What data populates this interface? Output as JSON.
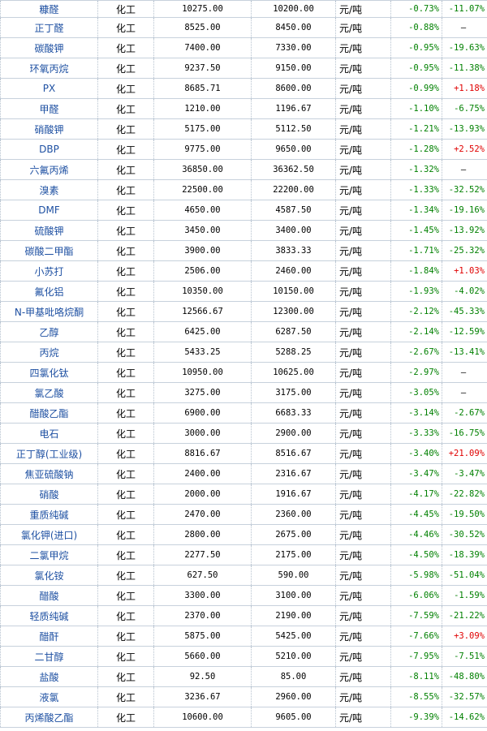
{
  "rows": [
    {
      "name": "糠醛",
      "sector": "化工",
      "price_1": "10275.00",
      "price_2": "10200.00",
      "unit": "元/吨",
      "change_1": "-0.73%",
      "change_2": "-11.07%"
    },
    {
      "name": "正丁醛",
      "sector": "化工",
      "price_1": "8525.00",
      "price_2": "8450.00",
      "unit": "元/吨",
      "change_1": "-0.88%",
      "change_2": "—"
    },
    {
      "name": "碳酸钾",
      "sector": "化工",
      "price_1": "7400.00",
      "price_2": "7330.00",
      "unit": "元/吨",
      "change_1": "-0.95%",
      "change_2": "-19.63%"
    },
    {
      "name": "环氧丙烷",
      "sector": "化工",
      "price_1": "9237.50",
      "price_2": "9150.00",
      "unit": "元/吨",
      "change_1": "-0.95%",
      "change_2": "-11.38%"
    },
    {
      "name": "PX",
      "sector": "化工",
      "price_1": "8685.71",
      "price_2": "8600.00",
      "unit": "元/吨",
      "change_1": "-0.99%",
      "change_2": "+1.18%"
    },
    {
      "name": "甲醛",
      "sector": "化工",
      "price_1": "1210.00",
      "price_2": "1196.67",
      "unit": "元/吨",
      "change_1": "-1.10%",
      "change_2": "-6.75%"
    },
    {
      "name": "硝酸钾",
      "sector": "化工",
      "price_1": "5175.00",
      "price_2": "5112.50",
      "unit": "元/吨",
      "change_1": "-1.21%",
      "change_2": "-13.93%"
    },
    {
      "name": "DBP",
      "sector": "化工",
      "price_1": "9775.00",
      "price_2": "9650.00",
      "unit": "元/吨",
      "change_1": "-1.28%",
      "change_2": "+2.52%"
    },
    {
      "name": "六氟丙烯",
      "sector": "化工",
      "price_1": "36850.00",
      "price_2": "36362.50",
      "unit": "元/吨",
      "change_1": "-1.32%",
      "change_2": "—"
    },
    {
      "name": "溴素",
      "sector": "化工",
      "price_1": "22500.00",
      "price_2": "22200.00",
      "unit": "元/吨",
      "change_1": "-1.33%",
      "change_2": "-32.52%"
    },
    {
      "name": "DMF",
      "sector": "化工",
      "price_1": "4650.00",
      "price_2": "4587.50",
      "unit": "元/吨",
      "change_1": "-1.34%",
      "change_2": "-19.16%"
    },
    {
      "name": "硫酸钾",
      "sector": "化工",
      "price_1": "3450.00",
      "price_2": "3400.00",
      "unit": "元/吨",
      "change_1": "-1.45%",
      "change_2": "-13.92%"
    },
    {
      "name": "碳酸二甲酯",
      "sector": "化工",
      "price_1": "3900.00",
      "price_2": "3833.33",
      "unit": "元/吨",
      "change_1": "-1.71%",
      "change_2": "-25.32%"
    },
    {
      "name": "小苏打",
      "sector": "化工",
      "price_1": "2506.00",
      "price_2": "2460.00",
      "unit": "元/吨",
      "change_1": "-1.84%",
      "change_2": "+1.03%"
    },
    {
      "name": "氟化铝",
      "sector": "化工",
      "price_1": "10350.00",
      "price_2": "10150.00",
      "unit": "元/吨",
      "change_1": "-1.93%",
      "change_2": "-4.02%"
    },
    {
      "name": "N-甲基吡咯烷酮",
      "sector": "化工",
      "price_1": "12566.67",
      "price_2": "12300.00",
      "unit": "元/吨",
      "change_1": "-2.12%",
      "change_2": "-45.33%"
    },
    {
      "name": "乙醇",
      "sector": "化工",
      "price_1": "6425.00",
      "price_2": "6287.50",
      "unit": "元/吨",
      "change_1": "-2.14%",
      "change_2": "-12.59%"
    },
    {
      "name": "丙烷",
      "sector": "化工",
      "price_1": "5433.25",
      "price_2": "5288.25",
      "unit": "元/吨",
      "change_1": "-2.67%",
      "change_2": "-13.41%"
    },
    {
      "name": "四氯化钛",
      "sector": "化工",
      "price_1": "10950.00",
      "price_2": "10625.00",
      "unit": "元/吨",
      "change_1": "-2.97%",
      "change_2": "—"
    },
    {
      "name": "氯乙酸",
      "sector": "化工",
      "price_1": "3275.00",
      "price_2": "3175.00",
      "unit": "元/吨",
      "change_1": "-3.05%",
      "change_2": "—"
    },
    {
      "name": "醋酸乙酯",
      "sector": "化工",
      "price_1": "6900.00",
      "price_2": "6683.33",
      "unit": "元/吨",
      "change_1": "-3.14%",
      "change_2": "-2.67%"
    },
    {
      "name": "电石",
      "sector": "化工",
      "price_1": "3000.00",
      "price_2": "2900.00",
      "unit": "元/吨",
      "change_1": "-3.33%",
      "change_2": "-16.75%"
    },
    {
      "name": "正丁醇(工业级)",
      "sector": "化工",
      "price_1": "8816.67",
      "price_2": "8516.67",
      "unit": "元/吨",
      "change_1": "-3.40%",
      "change_2": "+21.09%"
    },
    {
      "name": "焦亚硫酸钠",
      "sector": "化工",
      "price_1": "2400.00",
      "price_2": "2316.67",
      "unit": "元/吨",
      "change_1": "-3.47%",
      "change_2": "-3.47%"
    },
    {
      "name": "硝酸",
      "sector": "化工",
      "price_1": "2000.00",
      "price_2": "1916.67",
      "unit": "元/吨",
      "change_1": "-4.17%",
      "change_2": "-22.82%"
    },
    {
      "name": "重质纯碱",
      "sector": "化工",
      "price_1": "2470.00",
      "price_2": "2360.00",
      "unit": "元/吨",
      "change_1": "-4.45%",
      "change_2": "-19.50%"
    },
    {
      "name": "氯化钾(进口)",
      "sector": "化工",
      "price_1": "2800.00",
      "price_2": "2675.00",
      "unit": "元/吨",
      "change_1": "-4.46%",
      "change_2": "-30.52%"
    },
    {
      "name": "二氯甲烷",
      "sector": "化工",
      "price_1": "2277.50",
      "price_2": "2175.00",
      "unit": "元/吨",
      "change_1": "-4.50%",
      "change_2": "-18.39%"
    },
    {
      "name": "氯化铵",
      "sector": "化工",
      "price_1": "627.50",
      "price_2": "590.00",
      "unit": "元/吨",
      "change_1": "-5.98%",
      "change_2": "-51.04%"
    },
    {
      "name": "醋酸",
      "sector": "化工",
      "price_1": "3300.00",
      "price_2": "3100.00",
      "unit": "元/吨",
      "change_1": "-6.06%",
      "change_2": "-1.59%"
    },
    {
      "name": "轻质纯碱",
      "sector": "化工",
      "price_1": "2370.00",
      "price_2": "2190.00",
      "unit": "元/吨",
      "change_1": "-7.59%",
      "change_2": "-21.22%"
    },
    {
      "name": "醋酐",
      "sector": "化工",
      "price_1": "5875.00",
      "price_2": "5425.00",
      "unit": "元/吨",
      "change_1": "-7.66%",
      "change_2": "+3.09%"
    },
    {
      "name": "二甘醇",
      "sector": "化工",
      "price_1": "5660.00",
      "price_2": "5210.00",
      "unit": "元/吨",
      "change_1": "-7.95%",
      "change_2": "-7.51%"
    },
    {
      "name": "盐酸",
      "sector": "化工",
      "price_1": "92.50",
      "price_2": "85.00",
      "unit": "元/吨",
      "change_1": "-8.11%",
      "change_2": "-48.80%"
    },
    {
      "name": "液氯",
      "sector": "化工",
      "price_1": "3236.67",
      "price_2": "2960.00",
      "unit": "元/吨",
      "change_1": "-8.55%",
      "change_2": "-32.57%"
    },
    {
      "name": "丙烯酸乙酯",
      "sector": "化工",
      "price_1": "10600.00",
      "price_2": "9605.00",
      "unit": "元/吨",
      "change_1": "-9.39%",
      "change_2": "-14.62%"
    }
  ],
  "colors": {
    "name_link": "#1e50a2",
    "negative": "#008000",
    "positive": "#e00000",
    "grid": "#c7d1dc"
  }
}
